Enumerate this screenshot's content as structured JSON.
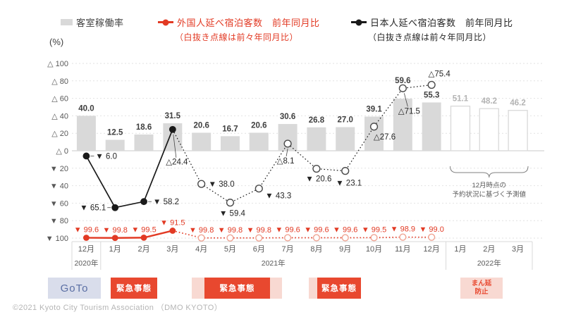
{
  "colors": {
    "accent_red": "#e23a24",
    "box_red": "#e8482f",
    "pink": "#f8d9d2",
    "goto_bg": "#d9ddeb",
    "goto_text": "#5b6fa4",
    "bar_gray": "#d9d9d9",
    "black_line": "#1a1a1a"
  },
  "legend": {
    "bar": {
      "label": "客室稼働率",
      "axis_unit": "(%)"
    },
    "foreign": {
      "label": "外国人延べ宿泊客数　前年同月比",
      "sub": "（白抜き点線は前々年同月比）"
    },
    "japanese": {
      "label": "日本人延べ宿泊客数　前年同月比",
      "sub": "（白抜き点線は前々年同月比）"
    }
  },
  "chart_data": {
    "type": "combo-bar-line",
    "y_axis": {
      "min": -100,
      "max": 100,
      "step": 20,
      "grid": "dashed",
      "ticks": [
        {
          "value": 100,
          "label": "△ 100"
        },
        {
          "value": 80,
          "label": "△ 80"
        },
        {
          "value": 60,
          "label": "△ 60"
        },
        {
          "value": 40,
          "label": "△ 40"
        },
        {
          "value": 20,
          "label": "△ 20"
        },
        {
          "value": 0,
          "label": "△ 0"
        },
        {
          "value": -20,
          "label": "▼ 20"
        },
        {
          "value": -40,
          "label": "▼ 40"
        },
        {
          "value": -60,
          "label": "▼ 60"
        },
        {
          "value": -80,
          "label": "▼ 80"
        },
        {
          "value": -100,
          "label": "▼ 100"
        }
      ]
    },
    "months": [
      "12月",
      "1月",
      "2月",
      "3月",
      "4月",
      "5月",
      "6月",
      "7月",
      "8月",
      "9月",
      "10月",
      "11月",
      "12月",
      "1月",
      "2月",
      "3月"
    ],
    "year_groups": [
      {
        "label": "2020年",
        "from": 0,
        "to": 1
      },
      {
        "label": "2021年",
        "from": 1,
        "to": 13
      },
      {
        "label": "2022年",
        "from": 13,
        "to": 16
      }
    ],
    "bars": {
      "name": "客室稼働率",
      "values": [
        40.0,
        12.5,
        18.6,
        31.5,
        20.6,
        16.7,
        20.6,
        30.6,
        26.8,
        27.0,
        39.1,
        59.6,
        55.3,
        51.1,
        48.2,
        46.2
      ],
      "labels": [
        "40.0",
        "12.5",
        "18.6",
        "31.5",
        "20.6",
        "16.7",
        "20.6",
        "30.6",
        "26.8",
        "27.0",
        "39.1",
        "59.6",
        "55.3",
        "51.1",
        "48.2",
        "46.2"
      ],
      "forecast_from": 13
    },
    "series": [
      {
        "key": "japanese",
        "name": "日本人延べ宿泊客数 前年同月比",
        "solid_note": "前年同月比",
        "dotted_note": "白抜き点線は前々年同月比",
        "color": "#1a1a1a",
        "open_stroke": "#4a4a4a",
        "label_color": "#262626",
        "solid_until": 3,
        "values": [
          -6.0,
          -65.1,
          -58.2,
          24.4,
          -38.0,
          -59.4,
          -43.3,
          8.1,
          -20.6,
          -23.1,
          27.6,
          71.5,
          75.4
        ],
        "labels": [
          "▼ 6.0",
          "▼ 65.1",
          "▼ 58.2",
          "△24.4",
          "▼ 38.0",
          "▼ 59.4",
          "▼ 43.3",
          "△8.1",
          "▼ 20.6",
          "▼ 23.1",
          "△27.6",
          "△71.5",
          "△75.4"
        ]
      },
      {
        "key": "foreign",
        "name": "外国人延べ宿泊客数 前年同月比",
        "solid_note": "前年同月比",
        "dotted_note": "白抜き点線は前々年同月比",
        "color": "#e23a24",
        "open_stroke": "#efa493",
        "label_color": "#e23a24",
        "solid_until": 3,
        "values": [
          -99.6,
          -99.8,
          -99.5,
          -91.5,
          -99.8,
          -99.8,
          -99.8,
          -99.6,
          -99.6,
          -99.6,
          -99.5,
          -98.9,
          -99.0
        ],
        "labels": [
          "▼ 99.6",
          "▼ 99.8",
          "▼ 99.5",
          "▼ 91.5",
          "▼ 99.8",
          "▼ 99.8",
          "▼ 99.8",
          "▼ 99.6",
          "▼ 99.6",
          "▼ 99.6",
          "▼ 99.5",
          "▼ 98.9",
          "▼ 99.0"
        ]
      }
    ],
    "forecast_note": {
      "lines": [
        "12月時点の",
        "予約状況に基づく予測値"
      ]
    }
  },
  "events": [
    {
      "label": "GoTo"
    },
    {
      "label": "緊急事態"
    },
    {
      "label": "緊急事態"
    },
    {
      "label": "緊急事態"
    },
    {
      "label": "まん延防止",
      "lines": [
        "まん延",
        "防止"
      ]
    }
  ],
  "footer": {
    "copyright": "©2021 Kyoto City Tourism Association （DMO KYOTO）"
  }
}
